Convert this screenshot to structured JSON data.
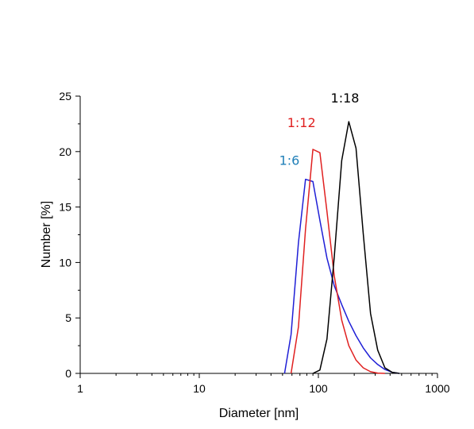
{
  "chart_data": {
    "type": "line",
    "title": "",
    "xlabel": "Diameter [nm]",
    "ylabel": "Number [%]",
    "xscale": "log",
    "xlim": [
      1,
      1000
    ],
    "ylim": [
      0,
      25
    ],
    "x_ticks": [
      1,
      10,
      100,
      1000
    ],
    "x_tick_labels": [
      "1",
      "10",
      "100",
      "1000"
    ],
    "y_ticks": [
      0,
      5,
      10,
      15,
      20,
      25
    ],
    "y_tick_labels": [
      "0",
      "5",
      "10",
      "15",
      "20",
      "25"
    ],
    "grid": false,
    "legend": "none",
    "series": [
      {
        "name": "1:6",
        "color": "#1f1fd6",
        "label_color": "#1f7fb8",
        "x": [
          52,
          59,
          68,
          78,
          90,
          103,
          118,
          136,
          157,
          180,
          207,
          238,
          274,
          315,
          362,
          416,
          478
        ],
        "y": [
          0,
          3.5,
          11.8,
          17.5,
          17.3,
          13.8,
          10.4,
          7.9,
          6.2,
          4.7,
          3.4,
          2.3,
          1.4,
          0.8,
          0.35,
          0.1,
          0
        ]
      },
      {
        "name": "1:12",
        "color": "#e02020",
        "label_color": "#e02020",
        "x": [
          59,
          68,
          78,
          90,
          103,
          118,
          136,
          157,
          180,
          207,
          238,
          274,
          315,
          362
        ],
        "y": [
          0,
          4.2,
          13.0,
          20.2,
          19.9,
          14.6,
          8.8,
          4.8,
          2.5,
          1.2,
          0.5,
          0.15,
          0.03,
          0
        ]
      },
      {
        "name": "1:18",
        "color": "#000000",
        "label_color": "#000000",
        "x": [
          90,
          103,
          118,
          136,
          157,
          180,
          207,
          238,
          274,
          315,
          362,
          416,
          478
        ],
        "y": [
          0,
          0.3,
          3.1,
          10.5,
          19.2,
          22.7,
          20.3,
          12.6,
          5.4,
          2.1,
          0.5,
          0.1,
          0
        ]
      }
    ],
    "annotations": [
      {
        "text": "1:6",
        "series": "1:6",
        "x": 80,
        "y": 17.5
      },
      {
        "text": "1:12",
        "series": "1:12",
        "x": 95,
        "y": 20.2
      },
      {
        "text": "1:18",
        "series": "1:18",
        "x": 195,
        "y": 22.7
      }
    ]
  }
}
